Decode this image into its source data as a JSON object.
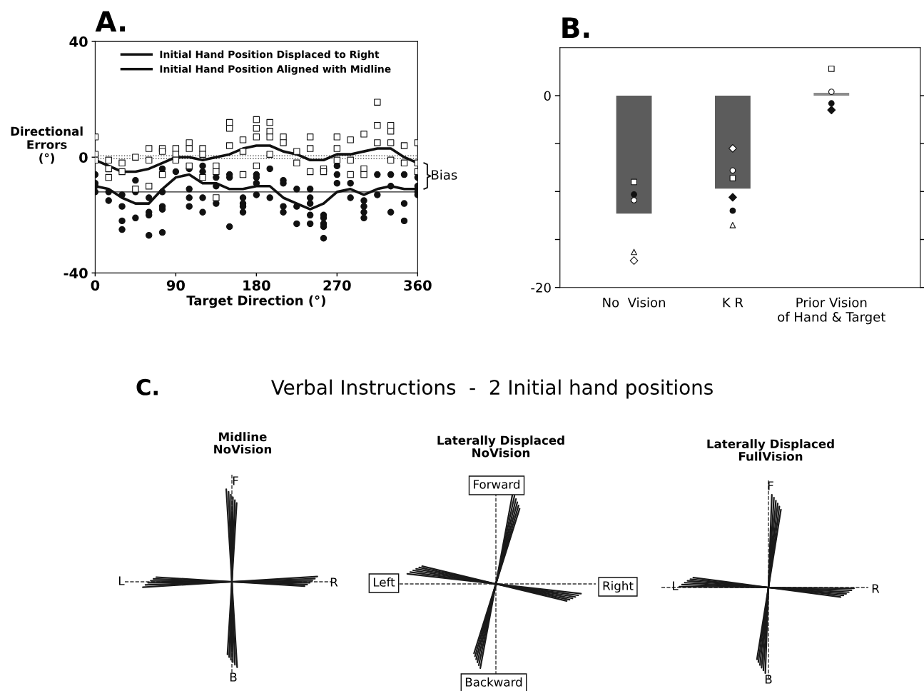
{
  "chart_data": [
    {
      "type": "line",
      "title": "A.",
      "xlabel": "Target Direction (°)",
      "ylabel": "Directional\nErrors\n(°)",
      "xlim": [
        0,
        360
      ],
      "xticks": [
        0,
        90,
        180,
        270,
        360
      ],
      "ylim": [
        -40,
        40
      ],
      "yticks": [
        -40,
        0,
        40
      ],
      "legend": "top",
      "grid": false,
      "annotations": [
        "Bias"
      ],
      "ref_lines": [
        {
          "axis": "y",
          "value": 0.5,
          "line_style": "dotted",
          "color": "#555555"
        },
        {
          "axis": "y",
          "value": -0.5,
          "line_style": "dotted",
          "color": "#555555"
        },
        {
          "axis": "y",
          "value": -12,
          "line_style": "solid",
          "color": "#222222"
        }
      ],
      "x": [
        0,
        15,
        30,
        45,
        60,
        75,
        90,
        105,
        120,
        135,
        150,
        165,
        180,
        195,
        210,
        225,
        240,
        255,
        270,
        285,
        300,
        315,
        330,
        345,
        360
      ],
      "series": [
        {
          "name": "Initial Hand Position Displaced to Right",
          "type": "line",
          "color": "#111111",
          "values": [
            -10,
            -11,
            -14,
            -16,
            -16,
            -11,
            -7,
            -6,
            -9,
            -9,
            -11,
            -11,
            -10,
            -10,
            -14,
            -16,
            -18,
            -16,
            -12,
            -11,
            -13,
            -11,
            -10,
            -11,
            -11
          ]
        },
        {
          "name": "Initial Hand Position Aligned with Midline",
          "type": "line",
          "color": "#111111",
          "values": [
            -1,
            -3,
            -5,
            -5,
            -4,
            -2,
            0,
            0,
            -1,
            0,
            1,
            3,
            4,
            4,
            2,
            1,
            -1,
            -1,
            1,
            1,
            2,
            3,
            3,
            0,
            -2
          ]
        },
        {
          "type": "scatter",
          "marker": "circle",
          "color": "#111111",
          "x": [
            0,
            0,
            0,
            0,
            15,
            15,
            30,
            30,
            30,
            30,
            45,
            45,
            45,
            60,
            60,
            60,
            60,
            75,
            75,
            75,
            75,
            75,
            90,
            105,
            105,
            105,
            105,
            120,
            120,
            120,
            120,
            135,
            135,
            135,
            150,
            150,
            150,
            165,
            165,
            165,
            165,
            180,
            180,
            180,
            180,
            195,
            195,
            210,
            210,
            210,
            210,
            225,
            225,
            225,
            240,
            240,
            240,
            240,
            240,
            255,
            255,
            255,
            255,
            255,
            270,
            270,
            270,
            285,
            285,
            300,
            300,
            300,
            300,
            315,
            315,
            330,
            330,
            330,
            345,
            345,
            345,
            360,
            360,
            360,
            360
          ],
          "values": [
            -6,
            -9,
            -10,
            -12,
            -12,
            -15,
            -13,
            -17,
            -22,
            -25,
            -8,
            -12,
            -21,
            -14,
            -19,
            -20,
            -27,
            -4,
            -12,
            -17,
            -18,
            -26,
            -5,
            -4,
            -11,
            -14,
            -17,
            -3,
            -5,
            -14,
            -19,
            -7,
            -10,
            -16,
            -6,
            -7,
            -24,
            -14,
            -16,
            -17,
            -19,
            -6,
            -7,
            -9,
            -13,
            -4,
            -14,
            -8,
            -9,
            -17,
            -19,
            -11,
            -17,
            -23,
            -11,
            -14,
            -16,
            -20,
            -23,
            -20,
            -21,
            -23,
            -24,
            -28,
            -3,
            -6,
            -9,
            -9,
            -14,
            -15,
            -17,
            -19,
            -21,
            -6,
            -13,
            -6,
            -10,
            -19,
            -6,
            -16,
            -22,
            -7,
            -10,
            -12,
            -13
          ]
        },
        {
          "type": "scatter",
          "marker": "square",
          "color": "#ffffff",
          "x": [
            0,
            0,
            0,
            15,
            15,
            15,
            30,
            30,
            45,
            45,
            60,
            60,
            60,
            75,
            75,
            75,
            90,
            90,
            90,
            105,
            105,
            105,
            120,
            120,
            120,
            135,
            135,
            135,
            150,
            150,
            150,
            165,
            165,
            165,
            180,
            180,
            180,
            180,
            195,
            195,
            195,
            195,
            210,
            210,
            225,
            225,
            240,
            240,
            240,
            255,
            255,
            270,
            270,
            270,
            285,
            285,
            285,
            300,
            300,
            300,
            315,
            315,
            315,
            330,
            330,
            330,
            330,
            345,
            345,
            360,
            360,
            360
          ],
          "values": [
            7,
            1,
            -1,
            -1,
            -4,
            -7,
            -2,
            -5,
            0,
            -11,
            3,
            -1,
            -10,
            3,
            2,
            -6,
            3,
            1,
            -1,
            5,
            3,
            -3,
            3,
            1,
            -7,
            -3,
            -5,
            -14,
            12,
            10,
            4,
            6,
            2,
            -6,
            13,
            10,
            7,
            -3,
            12,
            9,
            7,
            1,
            7,
            5,
            2,
            -2,
            7,
            3,
            -5,
            -4,
            -5,
            7,
            3,
            -1,
            6,
            -1,
            -6,
            8,
            -4,
            -6,
            19,
            11,
            5,
            11,
            9,
            5,
            -1,
            4,
            -2,
            5,
            -2,
            -5
          ]
        }
      ]
    },
    {
      "type": "bar",
      "title": "B.",
      "categories": [
        "No  Vision",
        "K R",
        "Prior Vision\nof Hand & Target"
      ],
      "ylim": [
        -20,
        5
      ],
      "yticks": [
        {
          "value": -20,
          "label": "-20"
        },
        {
          "value": -15,
          "label": null
        },
        {
          "value": -10,
          "label": null
        },
        {
          "value": -5,
          "label": null
        },
        0
      ],
      "grid": false,
      "series": [
        {
          "type": "bar",
          "colors": [
            "#5c5c5c",
            "#5c5c5c",
            "#8c8c8c"
          ],
          "values": [
            -12.3,
            -9.7,
            0.3
          ]
        },
        {
          "type": "scatter",
          "marker": "square",
          "color": "#ffffff",
          "x": [
            "No  Vision",
            "K R",
            "Prior Vision\nof Hand & Target"
          ],
          "values": [
            -9.0,
            -8.6,
            2.8
          ]
        },
        {
          "type": "scatter",
          "marker": "circle",
          "color": "#111111",
          "x": [
            "No  Vision",
            "K R",
            "Prior Vision\nof Hand & Target"
          ],
          "values": [
            -10.3,
            -12.0,
            -0.8
          ]
        },
        {
          "type": "scatter",
          "marker": "circle",
          "color": "#ffffff",
          "x": [
            "No  Vision",
            "K R",
            "Prior Vision\nof Hand & Target"
          ],
          "values": [
            -10.9,
            -7.8,
            0.4
          ]
        },
        {
          "type": "scatter",
          "marker": "triangle",
          "color": "#ffffff",
          "x": [
            "No  Vision",
            "K R",
            "Prior Vision\nof Hand & Target"
          ],
          "values": [
            -16.3,
            -13.5,
            null
          ]
        },
        {
          "type": "scatter",
          "marker": "diamond",
          "color": "#ffffff",
          "x": [
            "No  Vision",
            "K R",
            "Prior Vision\nof Hand & Target"
          ],
          "values": [
            -17.2,
            -5.5,
            null
          ]
        },
        {
          "type": "scatter",
          "marker": "diamond",
          "color": "#111111",
          "x": [
            "No  Vision",
            "K R",
            "Prior Vision\nof Hand & Target"
          ],
          "values": [
            null,
            -10.6,
            -1.5
          ]
        }
      ]
    },
    {
      "type": "other",
      "title": "C.",
      "subtitle": "Verbal Instructions  -  2 Initial hand positions",
      "annotations": [
        "Midline\nNoVision",
        "F",
        "L",
        "R",
        "B",
        "Laterally Displaced\nNoVision",
        "Forward",
        "Left",
        "Right",
        "Backward",
        "Laterally Displaced\nFullVision",
        "F",
        "L",
        "R",
        "B"
      ]
    }
  ]
}
